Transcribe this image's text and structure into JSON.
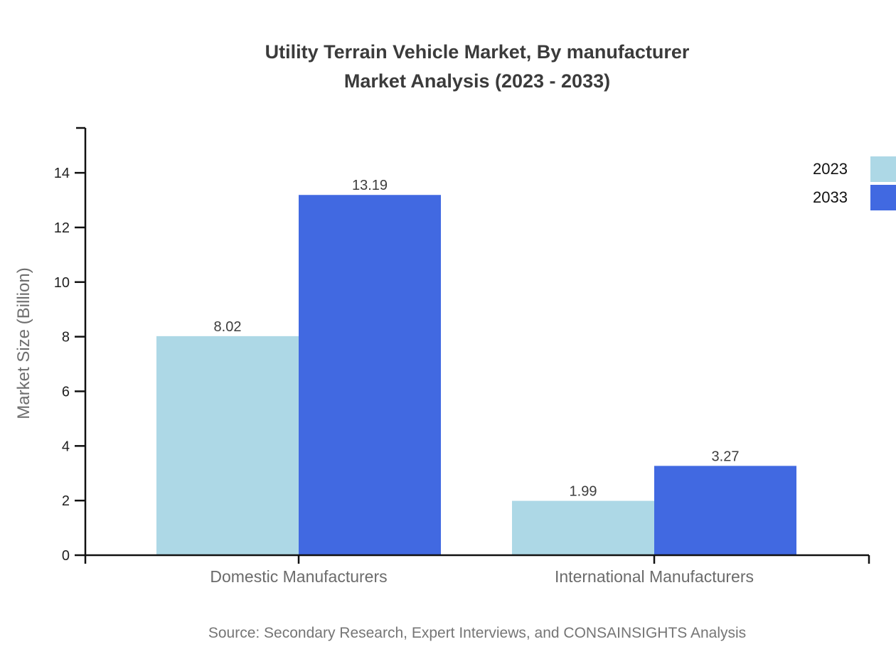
{
  "title": {
    "line1": "Utility Terrain Vehicle Market, By manufacturer",
    "line2": "Market Analysis (2023 - 2033)"
  },
  "source": "Source: Secondary Research, Expert Interviews, and CONSAINSIGHTS Analysis",
  "chart_data": {
    "type": "bar",
    "title": "Utility Terrain Vehicle Market, By manufacturer Market Analysis (2023 - 2033)",
    "categories": [
      "Domestic Manufacturers",
      "International Manufacturers"
    ],
    "series": [
      {
        "name": "2023",
        "color": "#ADD8E6",
        "values": [
          8.02,
          1.99
        ]
      },
      {
        "name": "2033",
        "color": "#4169E1",
        "values": [
          13.19,
          3.27
        ]
      }
    ],
    "value_label_format": "2-decimals",
    "xlabel": "",
    "ylabel": "Market Size (Billion)",
    "ylim": [
      0,
      15.6
    ],
    "yticks": [
      0,
      2,
      4,
      6,
      8,
      10,
      12,
      14
    ],
    "grid": false,
    "legend_position": "top-right"
  },
  "legend": {
    "items": [
      {
        "label": "2023",
        "color": "#ADD8E6"
      },
      {
        "label": "2033",
        "color": "#4169E1"
      }
    ]
  },
  "colors": {
    "axis": "#111111",
    "title_text": "#3b3b3b",
    "value_label_text": "#3d3d3d",
    "tick_label_text": "#1f1f1f",
    "category_text": "#6b6b6b",
    "ylabel_text": "#6e6e6e",
    "source_text": "#757575",
    "background": "#ffffff"
  }
}
